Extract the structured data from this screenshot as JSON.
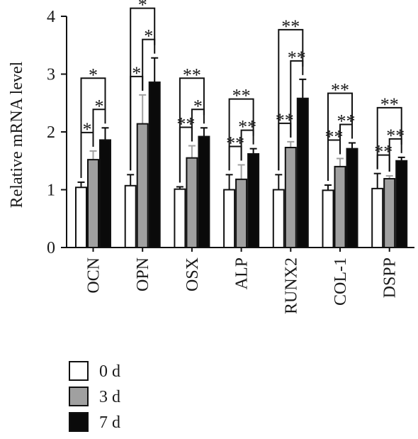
{
  "chart_data": {
    "type": "bar",
    "ylabel": "Relative mRNA level",
    "xlabel": "",
    "ylim": [
      0,
      4
    ],
    "yticks": [
      0,
      1,
      2,
      3,
      4
    ],
    "categories": [
      "OCN",
      "OPN",
      "OSX",
      "ALP",
      "RUNX2",
      "COL-1",
      "DSPP"
    ],
    "series": [
      {
        "name": "0 d",
        "color": "#ffffff",
        "values": [
          1.04,
          1.07,
          1.01,
          1.0,
          1.0,
          0.99,
          1.02
        ],
        "errors": [
          0.09,
          0.19,
          0.04,
          0.26,
          0.26,
          0.09,
          0.26
        ]
      },
      {
        "name": "3 d",
        "color": "#a0a0a0",
        "values": [
          1.52,
          2.14,
          1.55,
          1.18,
          1.73,
          1.4,
          1.19
        ],
        "errors": [
          0.15,
          0.5,
          0.21,
          0.25,
          0.1,
          0.14,
          0.05
        ]
      },
      {
        "name": "7 d",
        "color": "#0a0a0a",
        "values": [
          1.86,
          2.86,
          1.92,
          1.62,
          2.58,
          1.71,
          1.5
        ],
        "errors": [
          0.21,
          0.42,
          0.15,
          0.09,
          0.33,
          0.1,
          0.06
        ]
      }
    ],
    "significance": [
      {
        "pair": "0-3",
        "labels": [
          "*",
          "*",
          "**",
          "**",
          "**",
          "**",
          "**"
        ]
      },
      {
        "pair": "3-7",
        "labels": [
          "*",
          "*",
          "*",
          "**",
          "**",
          "**",
          "**"
        ]
      },
      {
        "pair": "0-7",
        "labels": [
          "*",
          "*",
          "**",
          "**",
          "**",
          "**",
          "**"
        ]
      }
    ],
    "legend": {
      "position": "bottom-left",
      "labels": [
        "0 d",
        "3 d",
        "7 d"
      ]
    }
  }
}
